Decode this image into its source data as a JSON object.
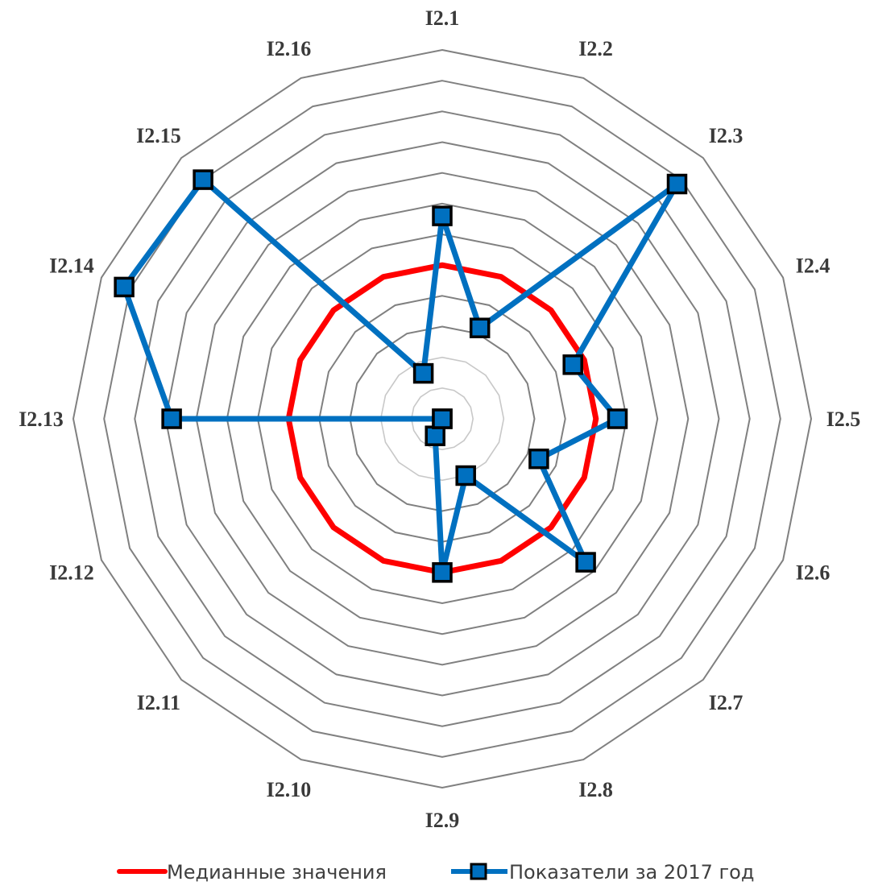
{
  "chart_data": {
    "type": "radar",
    "categories": [
      "I2.1",
      "I2.2",
      "I2.3",
      "I2.4",
      "I2.5",
      "I2.6",
      "I2.7",
      "I2.8",
      "I2.9",
      "I2.10",
      "I2.11",
      "I2.12",
      "I2.13",
      "I2.14",
      "I2.15",
      "I2.16"
    ],
    "rmax": 6,
    "ring_step": 0.5,
    "grid": true,
    "legend_position": "bottom",
    "series": [
      {
        "name": "Медианные значения",
        "color": "#ff0000",
        "marker": "none",
        "values": [
          2.5,
          2.5,
          2.5,
          2.5,
          2.5,
          2.5,
          2.5,
          2.5,
          2.5,
          2.5,
          2.5,
          2.5,
          2.5,
          2.5,
          2.5,
          2.5
        ]
      },
      {
        "name": "Показатели за 2017 год",
        "color": "#0070c0",
        "marker": "square",
        "values": [
          3.3,
          1.6,
          5.4,
          2.3,
          2.85,
          1.7,
          3.3,
          1.0,
          2.5,
          0.3,
          0.0,
          0.0,
          4.4,
          5.6,
          5.5,
          0.8
        ]
      }
    ]
  }
}
